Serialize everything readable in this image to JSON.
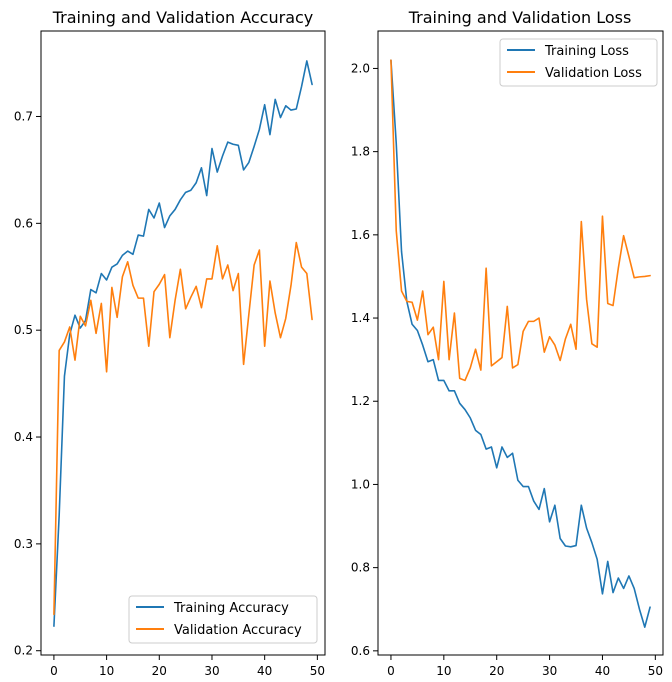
{
  "chart_data": [
    {
      "type": "line",
      "title": "Training and Validation Accuracy",
      "xlabel": "",
      "ylabel": "",
      "xlim": [
        -2.45,
        51.45
      ],
      "ylim": [
        0.196,
        0.78
      ],
      "xticks": [
        0,
        10,
        20,
        30,
        40,
        50
      ],
      "yticks": [
        0.2,
        0.3,
        0.4,
        0.5,
        0.6,
        0.7
      ],
      "grid": false,
      "legend_position": "lower-right",
      "x": [
        0,
        1,
        2,
        3,
        4,
        5,
        6,
        7,
        8,
        9,
        10,
        11,
        12,
        13,
        14,
        15,
        16,
        17,
        18,
        19,
        20,
        21,
        22,
        23,
        24,
        25,
        26,
        27,
        28,
        29,
        30,
        31,
        32,
        33,
        34,
        35,
        36,
        37,
        38,
        39,
        40,
        41,
        42,
        43,
        44,
        45,
        46,
        47,
        48,
        49
      ],
      "series": [
        {
          "name": "Training Accuracy",
          "color": "#1f77b4",
          "values": [
            0.223,
            0.327,
            0.457,
            0.496,
            0.514,
            0.502,
            0.509,
            0.538,
            0.535,
            0.553,
            0.547,
            0.559,
            0.562,
            0.57,
            0.574,
            0.571,
            0.589,
            0.588,
            0.613,
            0.605,
            0.619,
            0.596,
            0.607,
            0.613,
            0.622,
            0.629,
            0.631,
            0.638,
            0.652,
            0.626,
            0.67,
            0.648,
            0.663,
            0.676,
            0.674,
            0.673,
            0.65,
            0.657,
            0.672,
            0.688,
            0.711,
            0.683,
            0.716,
            0.699,
            0.71,
            0.706,
            0.707,
            0.728,
            0.752,
            0.73
          ]
        },
        {
          "name": "Validation Accuracy",
          "color": "#ff7f0e",
          "values": [
            0.234,
            0.481,
            0.489,
            0.503,
            0.472,
            0.513,
            0.504,
            0.528,
            0.497,
            0.525,
            0.461,
            0.54,
            0.512,
            0.55,
            0.564,
            0.542,
            0.53,
            0.53,
            0.485,
            0.536,
            0.543,
            0.552,
            0.493,
            0.528,
            0.557,
            0.52,
            0.531,
            0.541,
            0.521,
            0.548,
            0.548,
            0.579,
            0.548,
            0.561,
            0.537,
            0.553,
            0.468,
            0.515,
            0.561,
            0.575,
            0.485,
            0.546,
            0.516,
            0.493,
            0.511,
            0.542,
            0.582,
            0.559,
            0.553,
            0.51
          ]
        }
      ]
    },
    {
      "type": "line",
      "title": "Training and Validation Loss",
      "xlabel": "",
      "ylabel": "",
      "xlim": [
        -2.45,
        51.45
      ],
      "ylim": [
        0.59,
        2.09
      ],
      "xticks": [
        0,
        10,
        20,
        30,
        40,
        50
      ],
      "yticks": [
        0.6,
        0.8,
        1.0,
        1.2,
        1.4,
        1.6,
        1.8,
        2.0
      ],
      "grid": false,
      "legend_position": "upper-right",
      "x": [
        0,
        1,
        2,
        3,
        4,
        5,
        6,
        7,
        8,
        9,
        10,
        11,
        12,
        13,
        14,
        15,
        16,
        17,
        18,
        19,
        20,
        21,
        22,
        23,
        24,
        25,
        26,
        27,
        28,
        29,
        30,
        31,
        32,
        33,
        34,
        35,
        36,
        37,
        38,
        39,
        40,
        41,
        42,
        43,
        44,
        45,
        46,
        47,
        48,
        49
      ],
      "series": [
        {
          "name": "Training Loss",
          "color": "#1f77b4",
          "values": [
            2.02,
            1.82,
            1.56,
            1.44,
            1.385,
            1.37,
            1.335,
            1.295,
            1.3,
            1.25,
            1.25,
            1.225,
            1.225,
            1.195,
            1.18,
            1.16,
            1.13,
            1.12,
            1.085,
            1.09,
            1.04,
            1.09,
            1.065,
            1.075,
            1.01,
            0.995,
            0.995,
            0.96,
            0.94,
            0.99,
            0.91,
            0.95,
            0.87,
            0.852,
            0.85,
            0.853,
            0.95,
            0.895,
            0.86,
            0.82,
            0.737,
            0.815,
            0.74,
            0.775,
            0.75,
            0.78,
            0.75,
            0.7,
            0.657,
            0.705
          ]
        },
        {
          "name": "Validation Loss",
          "color": "#ff7f0e",
          "values": [
            2.02,
            1.61,
            1.465,
            1.44,
            1.438,
            1.395,
            1.465,
            1.36,
            1.378,
            1.3,
            1.488,
            1.3,
            1.412,
            1.255,
            1.25,
            1.28,
            1.325,
            1.275,
            1.52,
            1.285,
            1.295,
            1.305,
            1.428,
            1.28,
            1.288,
            1.368,
            1.392,
            1.392,
            1.4,
            1.318,
            1.355,
            1.335,
            1.298,
            1.35,
            1.385,
            1.325,
            1.632,
            1.445,
            1.338,
            1.33,
            1.645,
            1.435,
            1.43,
            1.52,
            1.598,
            1.548,
            1.497,
            1.499,
            1.5,
            1.502
          ]
        }
      ]
    }
  ]
}
